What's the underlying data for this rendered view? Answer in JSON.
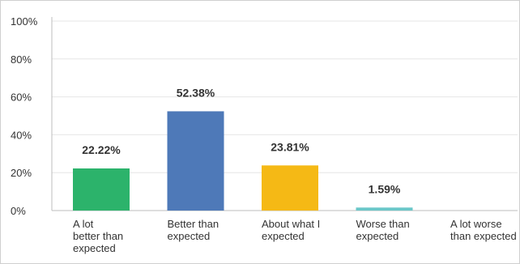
{
  "chart_data": {
    "type": "bar",
    "categories": [
      [
        "A lot",
        "better than",
        "expected"
      ],
      [
        "Better than",
        "expected"
      ],
      [
        "About what I",
        "expected"
      ],
      [
        "Worse than",
        "expected"
      ],
      [
        "A lot worse",
        "than expected"
      ]
    ],
    "values": [
      22.22,
      52.38,
      23.81,
      1.59,
      0
    ],
    "value_labels": [
      "22.22%",
      "52.38%",
      "23.81%",
      "1.59%",
      ""
    ],
    "colors": [
      "#2cb36b",
      "#4e79b8",
      "#f5b915",
      "#6ac7c8",
      "#cccccc"
    ],
    "ylim": [
      0,
      100
    ],
    "yticks": [
      0,
      20,
      40,
      60,
      80,
      100
    ],
    "ytick_labels": [
      "0%",
      "20%",
      "40%",
      "60%",
      "80%",
      "100%"
    ],
    "grid": true,
    "legend": "none",
    "title": "",
    "xlabel": "",
    "ylabel": ""
  }
}
